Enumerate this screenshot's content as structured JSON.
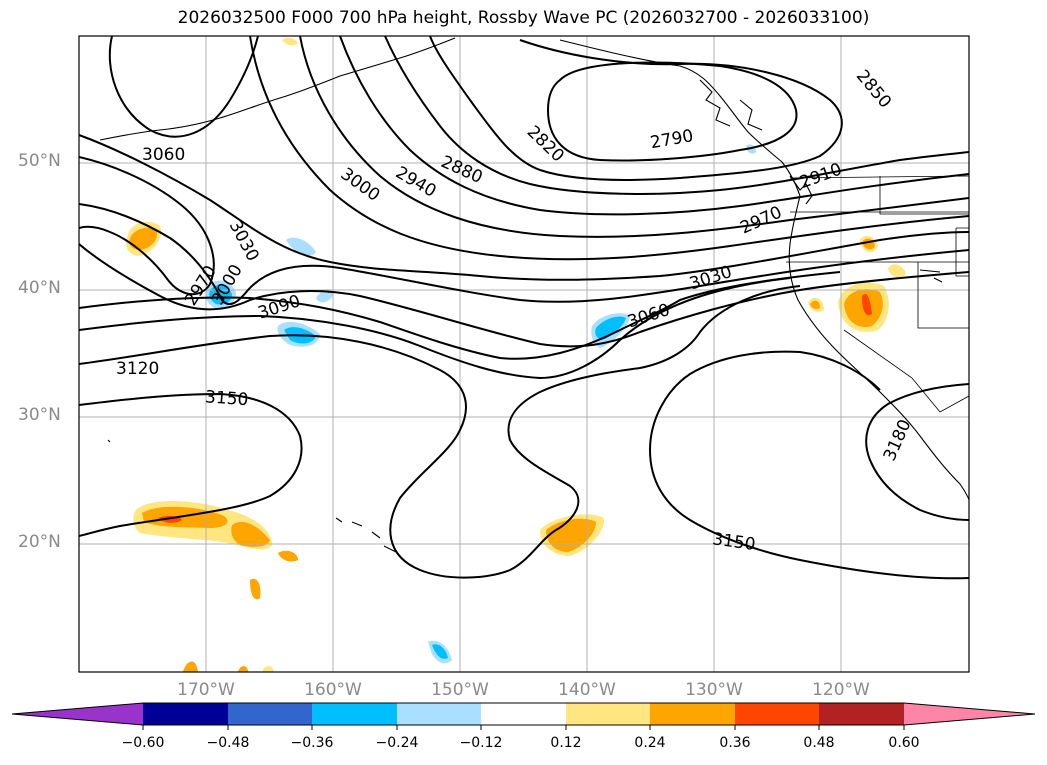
{
  "title": "2026032500 F000 700 hPa height, Rossby Wave PC (2026032700 - 2026033100)",
  "map": {
    "lat_labels": [
      "50°N",
      "40°N",
      "30°N",
      "20°N"
    ],
    "lon_labels": [
      "170°W",
      "160°W",
      "150°W",
      "140°W",
      "130°W",
      "120°W"
    ],
    "contour_labels": [
      "3060",
      "3030",
      "2970",
      "3000",
      "3090",
      "3120",
      "3150",
      "3000",
      "2940",
      "2880",
      "2820",
      "2790",
      "2850",
      "2910",
      "2970",
      "3030",
      "3060",
      "3150",
      "3180"
    ],
    "contour_color": "#000000",
    "grid_color": "#b0b0b0"
  },
  "colorbar": {
    "ticks": [
      "−0.60",
      "−0.48",
      "−0.36",
      "−0.24",
      "−0.12",
      "0.12",
      "0.24",
      "0.36",
      "0.48",
      "0.60"
    ],
    "colors": [
      "#9933cc",
      "#000099",
      "#3366cc",
      "#00bfff",
      "#aadfff",
      "#ffffff",
      "#ffe680",
      "#ffa500",
      "#ff4500",
      "#b22222",
      "#ff85a8"
    ]
  }
}
